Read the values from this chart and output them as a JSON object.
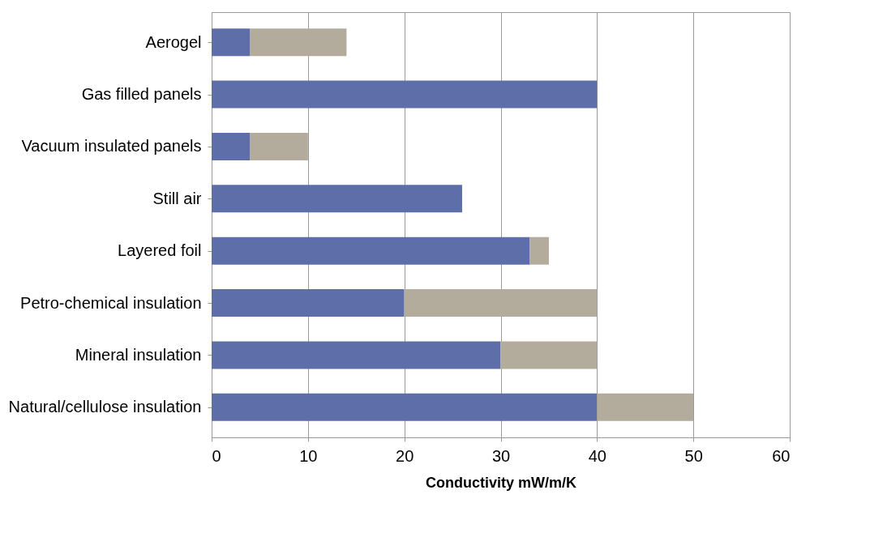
{
  "chart_data": {
    "type": "bar",
    "orientation": "horizontal",
    "stacked": true,
    "xlabel": "Conductivity mW/m/K",
    "categories": [
      "Aerogel",
      "Gas filled panels",
      "Vacuum insulated panels",
      "Still air",
      "Layered foil",
      "Petro-chemical insulation",
      "Mineral insulation",
      "Natural/cellulose insulation"
    ],
    "series": [
      {
        "color": "#5e6ea8",
        "values": [
          4,
          40,
          4,
          26,
          33,
          20,
          30,
          40
        ]
      },
      {
        "color": "#b3ab9b",
        "values": [
          10,
          null,
          6,
          null,
          2,
          20,
          10,
          10
        ]
      }
    ],
    "xlim": [
      0,
      60
    ],
    "xticks": [
      0,
      10,
      20,
      30,
      40,
      50,
      60
    ],
    "grid": "x",
    "legend": false
  }
}
